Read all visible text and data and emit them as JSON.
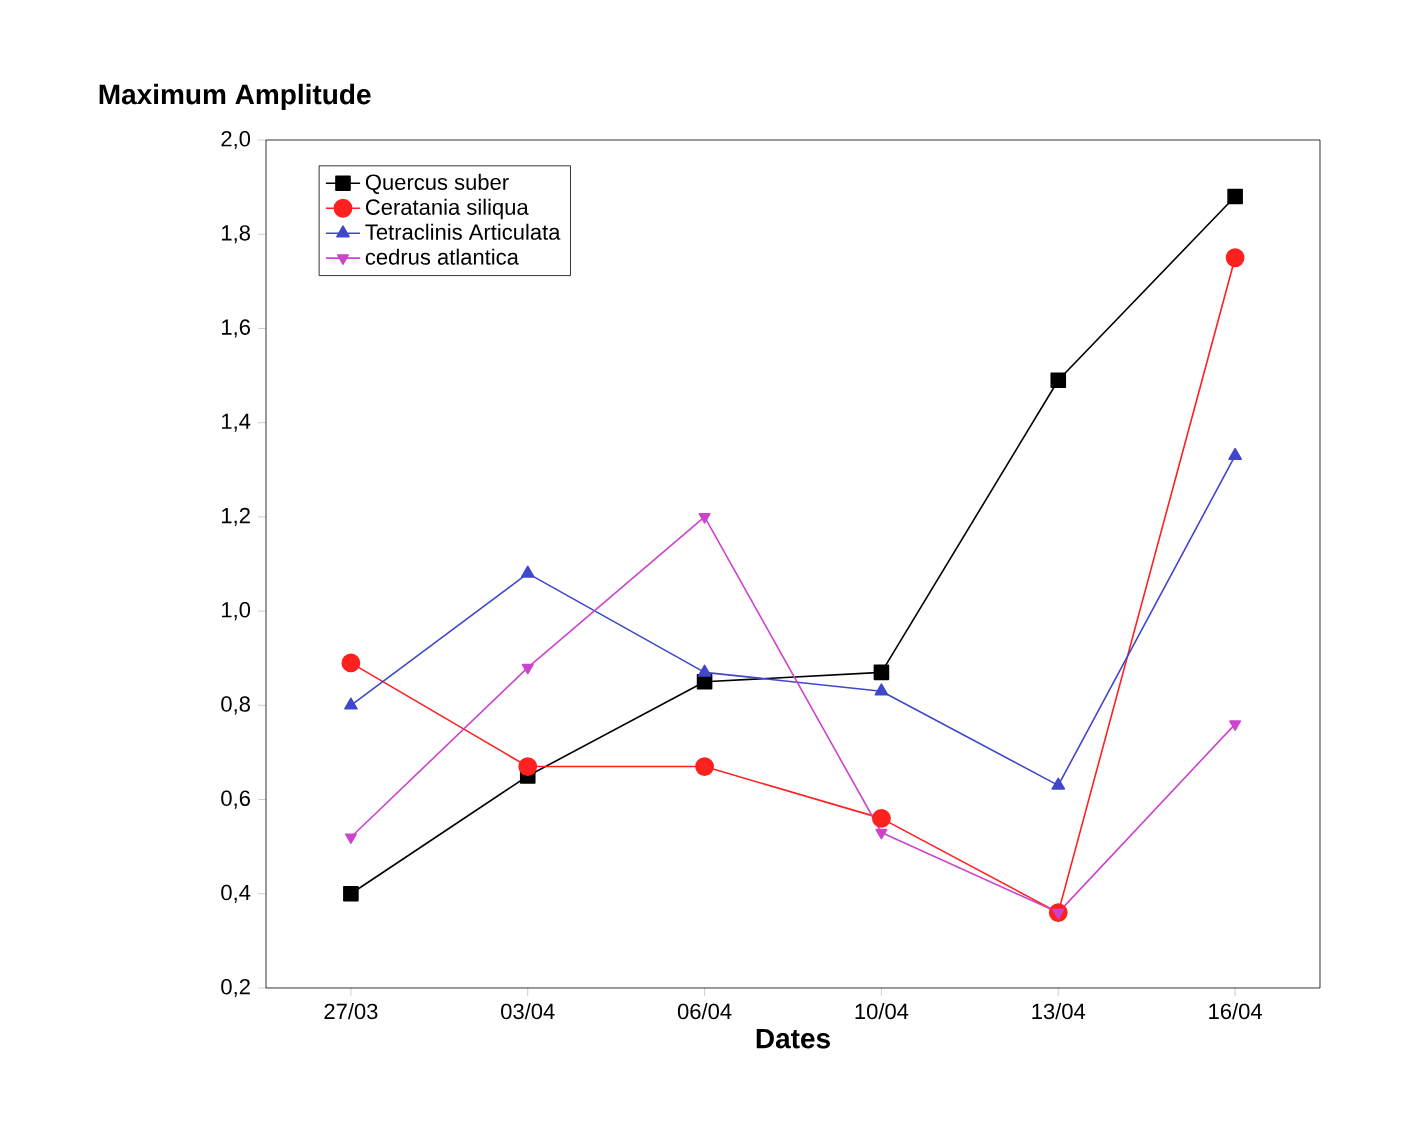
{
  "chart_data": {
    "type": "line",
    "ylabel": "Maximum Amplitude",
    "xlabel": "Dates",
    "categories": [
      "27/03",
      "03/04",
      "06/04",
      "10/04",
      "13/04",
      "16/04"
    ],
    "ylim": [
      0.2,
      2.0
    ],
    "yticks": [
      {
        "value": 0.2,
        "label": "0,2"
      },
      {
        "value": 0.4,
        "label": "0,4"
      },
      {
        "value": 0.6,
        "label": "0,6"
      },
      {
        "value": 0.8,
        "label": "0,8"
      },
      {
        "value": 1.0,
        "label": "1,0"
      },
      {
        "value": 1.2,
        "label": "1,2"
      },
      {
        "value": 1.4,
        "label": "1,4"
      },
      {
        "value": 1.6,
        "label": "1,6"
      },
      {
        "value": 1.8,
        "label": "1,8"
      },
      {
        "value": 2.0,
        "label": "2,0"
      }
    ],
    "legend": "top left",
    "grid": false,
    "line_style": "solid",
    "series": [
      {
        "name": "Quercus suber",
        "color": "#000000",
        "marker": "square",
        "values": [
          0.4,
          0.65,
          0.85,
          0.87,
          1.49,
          1.88
        ]
      },
      {
        "name": "Ceratania siliqua",
        "color": "#ff2020",
        "marker": "circle",
        "values": [
          0.89,
          0.67,
          0.67,
          0.56,
          0.36,
          1.75
        ]
      },
      {
        "name": "Tetraclinis Articulata",
        "color": "#3f48cc",
        "marker": "triangle",
        "values": [
          0.8,
          1.08,
          0.87,
          0.83,
          0.63,
          1.33
        ]
      },
      {
        "name": "cedrus atlantica",
        "color": "#cc44cc",
        "marker": "triangle-down",
        "values": [
          0.52,
          0.88,
          1.2,
          0.53,
          0.36,
          0.76
        ]
      }
    ]
  }
}
